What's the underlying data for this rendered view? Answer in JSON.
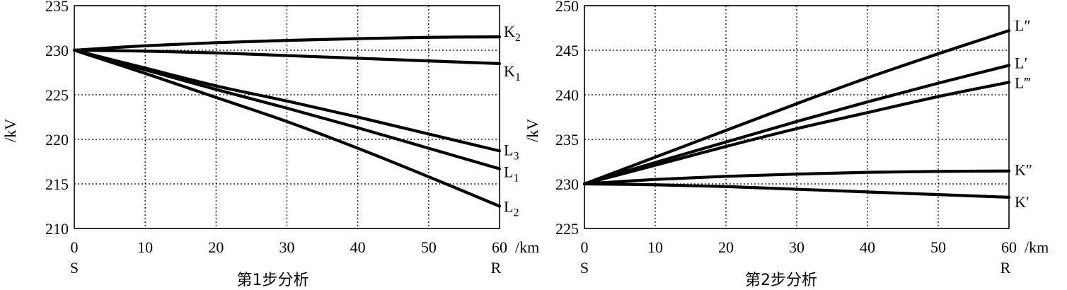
{
  "chart_data": [
    {
      "type": "line",
      "title": "",
      "caption": "第1步分析",
      "xlabel": "/km",
      "ylabel": "/kV",
      "xlim": [
        0,
        60
      ],
      "ylim": [
        210,
        235
      ],
      "x_ticks": [
        "0",
        "10",
        "20",
        "30",
        "40",
        "50",
        "60"
      ],
      "y_ticks": [
        "210",
        "215",
        "220",
        "225",
        "230",
        "235"
      ],
      "start_label": "S",
      "end_label": "R",
      "grid": true,
      "series": [
        {
          "name": "K",
          "sub": "2",
          "x": [
            0,
            10,
            20,
            30,
            40,
            50,
            60
          ],
          "values": [
            230,
            230.5,
            230.85,
            231.1,
            231.3,
            231.45,
            231.5
          ]
        },
        {
          "name": "K",
          "sub": "1",
          "x": [
            0,
            10,
            20,
            30,
            40,
            50,
            60
          ],
          "values": [
            230,
            229.9,
            229.7,
            229.4,
            229.1,
            228.8,
            228.5
          ]
        },
        {
          "name": "L",
          "sub": "3",
          "x": [
            0,
            10,
            20,
            30,
            40,
            50,
            60
          ],
          "values": [
            230,
            228.0,
            226.0,
            224.3,
            222.5,
            220.6,
            218.7
          ]
        },
        {
          "name": "L",
          "sub": "1",
          "x": [
            0,
            10,
            20,
            30,
            40,
            50,
            60
          ],
          "values": [
            230,
            227.8,
            225.6,
            223.5,
            221.3,
            219.0,
            216.7
          ]
        },
        {
          "name": "L",
          "sub": "2",
          "x": [
            0,
            10,
            20,
            30,
            40,
            50,
            60
          ],
          "values": [
            230,
            227.4,
            224.7,
            222.0,
            219.0,
            215.8,
            212.5
          ]
        }
      ]
    },
    {
      "type": "line",
      "title": "",
      "caption": "第2步分析",
      "xlabel": "/km",
      "ylabel": "/kV",
      "xlim": [
        0,
        60
      ],
      "ylim": [
        225,
        250
      ],
      "x_ticks": [
        "0",
        "10",
        "20",
        "30",
        "40",
        "50",
        "60"
      ],
      "y_ticks": [
        "225",
        "230",
        "235",
        "240",
        "245",
        "250"
      ],
      "start_label": "S",
      "end_label": "R",
      "grid": true,
      "series": [
        {
          "name": "L″",
          "sub": "",
          "x": [
            0,
            10,
            20,
            30,
            40,
            50,
            60
          ],
          "values": [
            230,
            233.0,
            236.0,
            239.0,
            241.9,
            244.6,
            247.2
          ]
        },
        {
          "name": "L′",
          "sub": "",
          "x": [
            0,
            10,
            20,
            30,
            40,
            50,
            60
          ],
          "values": [
            230,
            232.4,
            234.7,
            237.0,
            239.2,
            241.3,
            243.3
          ]
        },
        {
          "name": "L‴",
          "sub": "",
          "x": [
            0,
            10,
            20,
            30,
            40,
            50,
            60
          ],
          "values": [
            230,
            232.1,
            234.2,
            236.2,
            238.0,
            239.8,
            241.4
          ]
        },
        {
          "name": "K″",
          "sub": "",
          "x": [
            0,
            10,
            20,
            30,
            40,
            50,
            60
          ],
          "values": [
            230,
            230.5,
            230.85,
            231.1,
            231.3,
            231.4,
            231.45
          ]
        },
        {
          "name": "K′",
          "sub": "",
          "x": [
            0,
            10,
            20,
            30,
            40,
            50,
            60
          ],
          "values": [
            230,
            229.9,
            229.7,
            229.4,
            229.1,
            228.8,
            228.5
          ]
        }
      ]
    }
  ]
}
